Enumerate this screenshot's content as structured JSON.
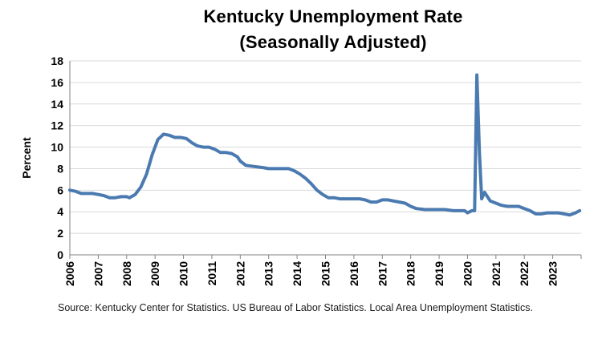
{
  "chart_data": {
    "type": "line",
    "title": "Kentucky Unemployment Rate",
    "subtitle": "(Seasonally Adjusted)",
    "ylabel": "Percent",
    "xlabel": "",
    "ylim": [
      0,
      18
    ],
    "yticks": [
      "0",
      "2",
      "4",
      "6",
      "8",
      "10",
      "12",
      "14",
      "16",
      "18"
    ],
    "xlim": [
      2006.0,
      2024.0
    ],
    "xticks": [
      "2006",
      "2007",
      "2008",
      "2009",
      "2010",
      "2011",
      "2012",
      "2013",
      "2014",
      "2015",
      "2016",
      "2017",
      "2018",
      "2019",
      "2020",
      "2021",
      "2022",
      "2023"
    ],
    "grid": "horizontal",
    "legend": "none",
    "line_color": "#4a7ab0",
    "series": [
      {
        "x": [
          2006.0,
          2006.2,
          2006.4,
          2006.6,
          2006.8,
          2007.0,
          2007.2,
          2007.4,
          2007.6,
          2007.8,
          2008.0,
          2008.1,
          2008.3,
          2008.5,
          2008.7,
          2008.9,
          2009.1,
          2009.3,
          2009.5,
          2009.7,
          2009.9,
          2010.1,
          2010.3,
          2010.5,
          2010.7,
          2010.9,
          2011.1,
          2011.3,
          2011.5,
          2011.7,
          2011.9,
          2012.0,
          2012.2,
          2012.5,
          2012.8,
          2013.0,
          2013.2,
          2013.5,
          2013.7,
          2013.9,
          2014.1,
          2014.3,
          2014.5,
          2014.7,
          2014.9,
          2015.1,
          2015.3,
          2015.5,
          2015.8,
          2016.0,
          2016.2,
          2016.4,
          2016.6,
          2016.8,
          2017.0,
          2017.2,
          2017.4,
          2017.6,
          2017.8,
          2018.0,
          2018.2,
          2018.5,
          2018.8,
          2019.0,
          2019.2,
          2019.5,
          2019.7,
          2019.9,
          2020.0,
          2020.15,
          2020.25,
          2020.33,
          2020.42,
          2020.5,
          2020.6,
          2020.8,
          2021.0,
          2021.2,
          2021.4,
          2021.6,
          2021.8,
          2022.0,
          2022.2,
          2022.4,
          2022.6,
          2022.8,
          2023.0,
          2023.2,
          2023.4,
          2023.6,
          2023.8,
          2023.95
        ],
        "values": [
          6.0,
          5.9,
          5.7,
          5.7,
          5.7,
          5.6,
          5.5,
          5.3,
          5.3,
          5.4,
          5.4,
          5.3,
          5.6,
          6.3,
          7.5,
          9.3,
          10.7,
          11.2,
          11.1,
          10.9,
          10.9,
          10.8,
          10.4,
          10.1,
          10.0,
          10.0,
          9.8,
          9.5,
          9.5,
          9.4,
          9.1,
          8.7,
          8.3,
          8.2,
          8.1,
          8.0,
          8.0,
          8.0,
          8.0,
          7.8,
          7.5,
          7.1,
          6.6,
          6.0,
          5.6,
          5.3,
          5.3,
          5.2,
          5.2,
          5.2,
          5.2,
          5.1,
          4.9,
          4.9,
          5.1,
          5.1,
          5.0,
          4.9,
          4.8,
          4.5,
          4.3,
          4.2,
          4.2,
          4.2,
          4.2,
          4.1,
          4.1,
          4.1,
          3.9,
          4.1,
          4.1,
          16.7,
          9.5,
          5.2,
          5.8,
          5.0,
          4.8,
          4.6,
          4.5,
          4.5,
          4.5,
          4.3,
          4.1,
          3.8,
          3.8,
          3.9,
          3.9,
          3.9,
          3.8,
          3.7,
          3.9,
          4.1
        ]
      }
    ]
  },
  "source_note": "Source: Kentucky Center for Statistics. US Bureau of Labor Statistics. Local Area Unemployment Statistics."
}
